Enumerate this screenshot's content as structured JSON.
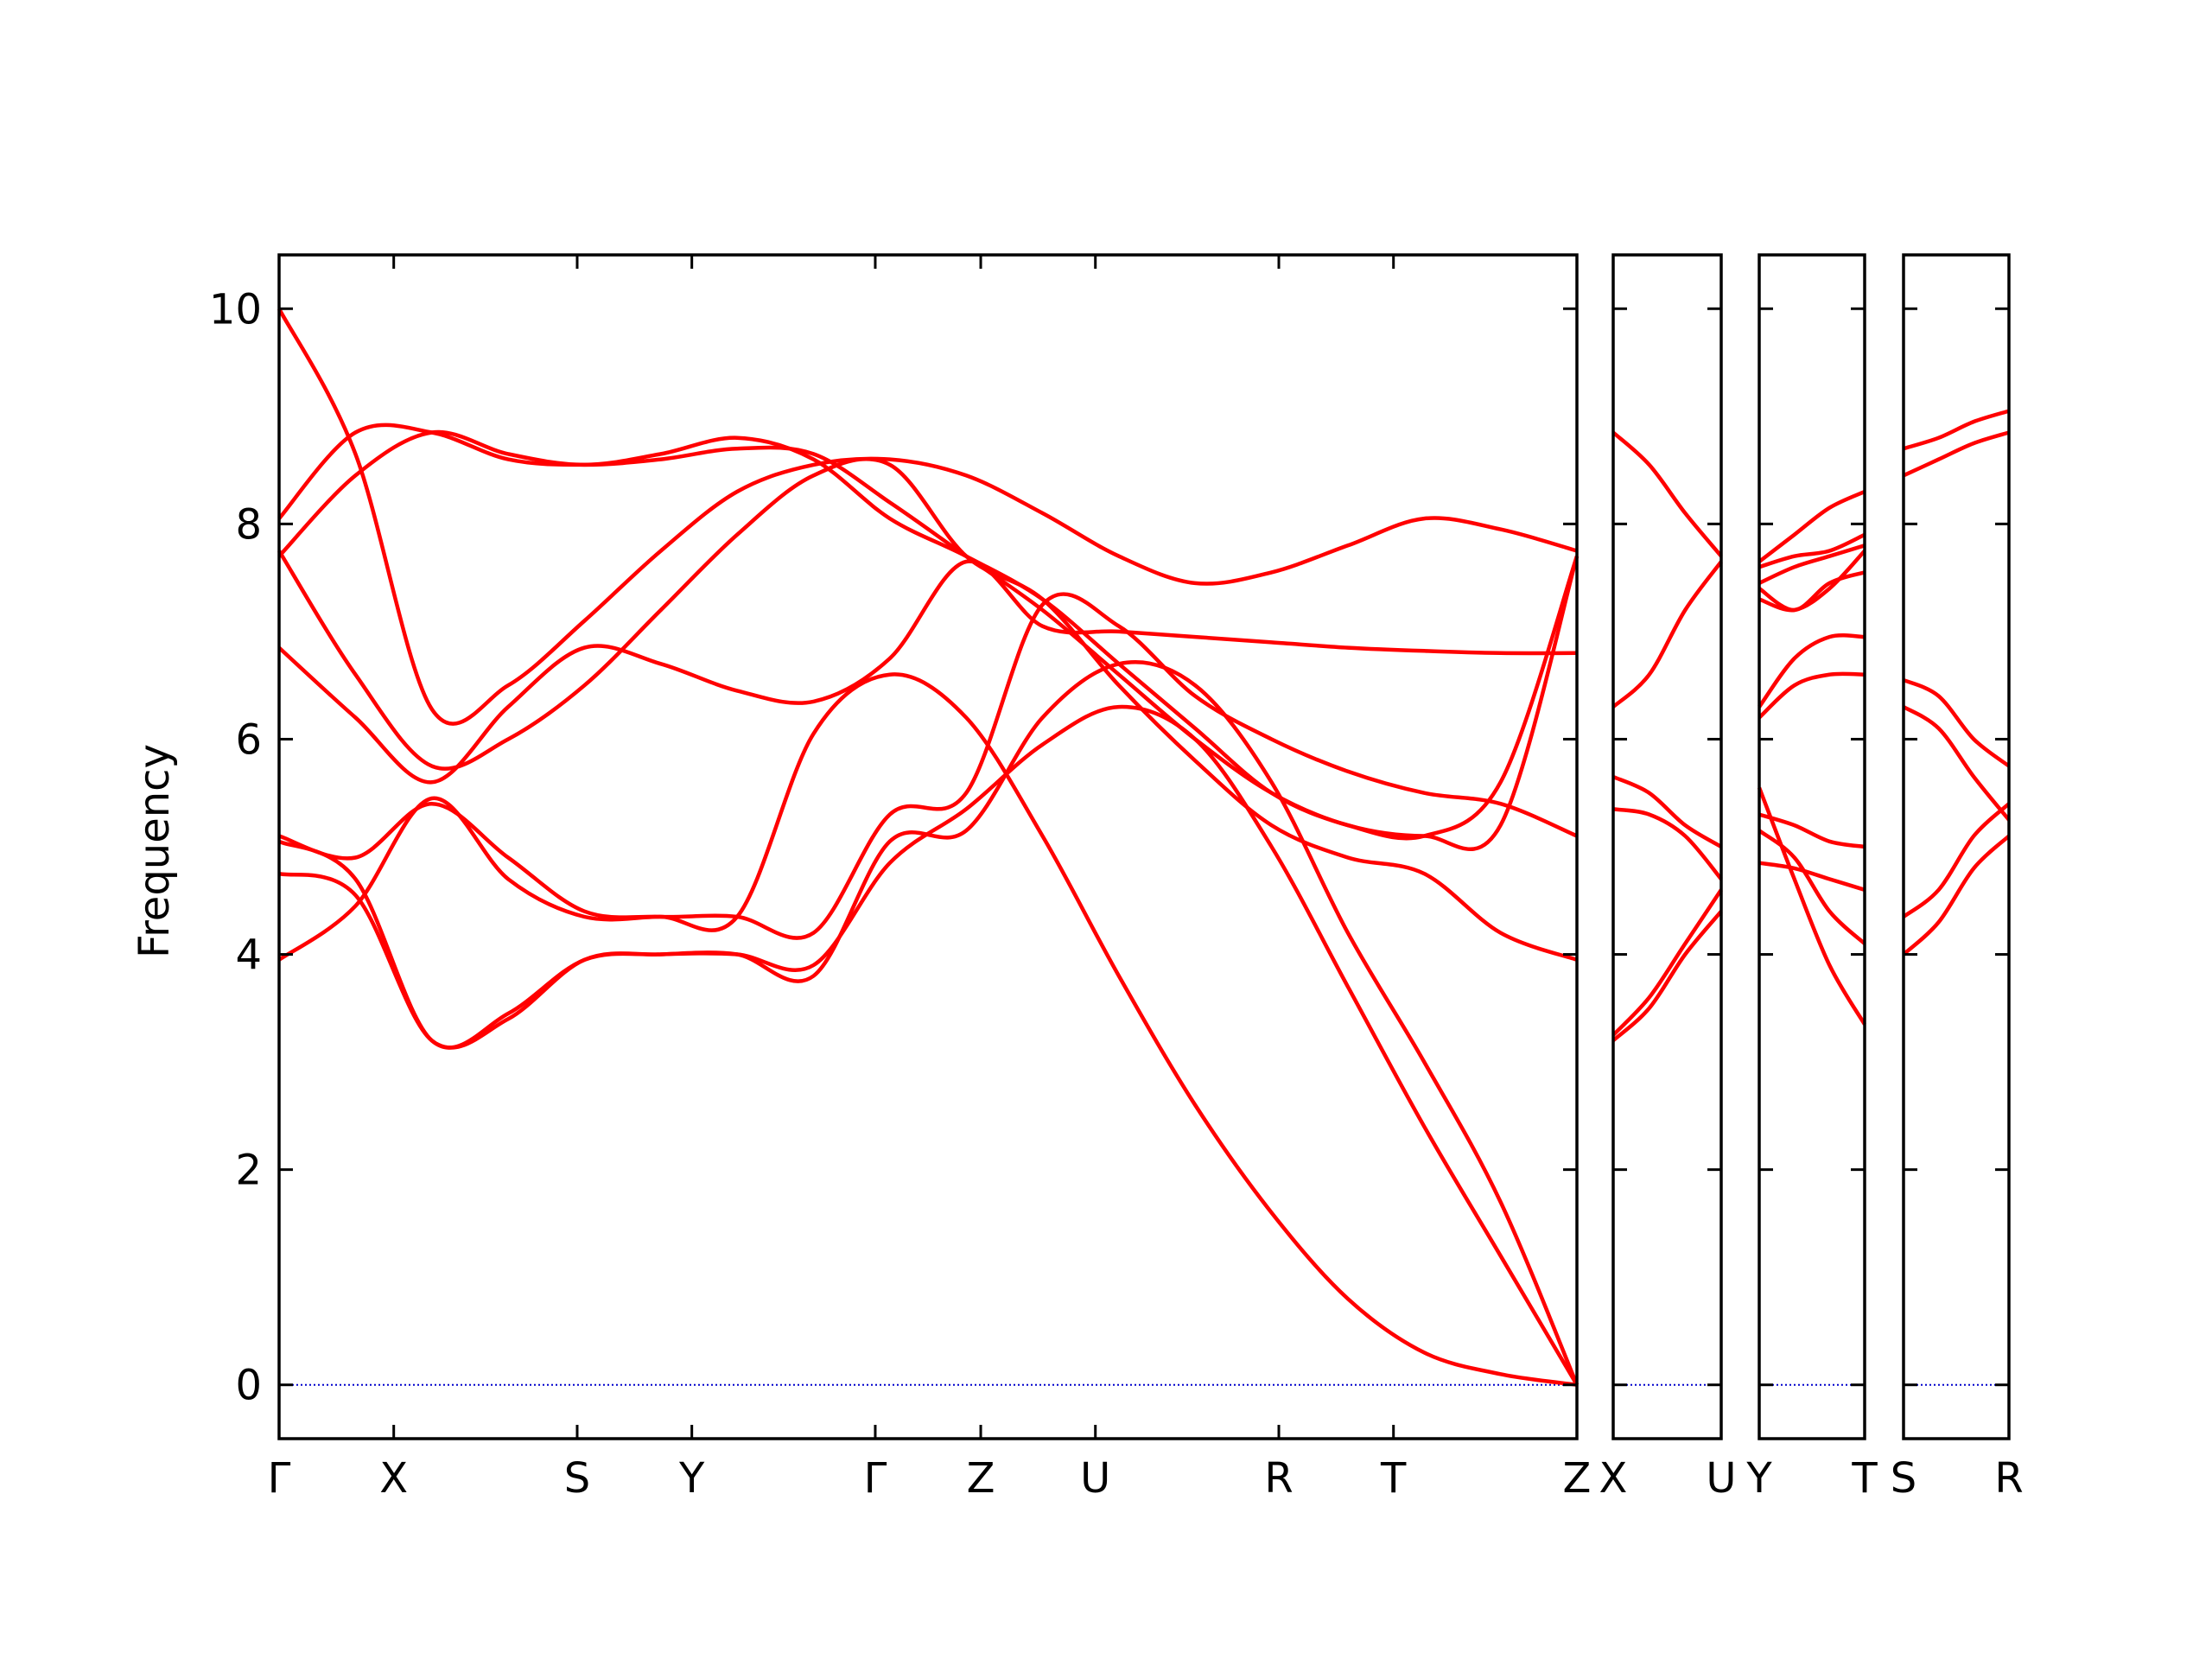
{
  "chart_data": {
    "type": "line",
    "title": "",
    "xlabel": "",
    "ylabel": "Frequency",
    "ylim": [
      -0.5,
      10.5
    ],
    "yticks": [
      0,
      2,
      4,
      6,
      8,
      10
    ],
    "line_color": "#ff0000",
    "zero_line_color": "#0000cc",
    "panels": [
      {
        "segments": [
          {
            "from": "Γ",
            "to": "X",
            "length": 1.0
          },
          {
            "from": "X",
            "to": "S",
            "length": 1.6
          },
          {
            "from": "S",
            "to": "Y",
            "length": 1.0
          },
          {
            "from": "Y",
            "to": "Γ",
            "length": 1.6
          },
          {
            "from": "Γ",
            "to": "Z",
            "length": 0.92
          },
          {
            "from": "Z",
            "to": "U",
            "length": 1.0
          },
          {
            "from": "U",
            "to": "R",
            "length": 1.6
          },
          {
            "from": "R",
            "to": "T",
            "length": 1.0
          },
          {
            "from": "T",
            "to": "Z",
            "length": 1.6
          }
        ],
        "labels": [
          "Γ",
          "X",
          "S",
          "Y",
          "Γ",
          "Z",
          "U",
          "R",
          "T",
          "Z"
        ],
        "bands": [
          {
            "seg": [
              [
                0,
                10
              ],
              [
                0.5,
                8.2
              ],
              [
                1,
                6.3
              ]
            ],
            "smooth": [
              [
                0,
                10
              ],
              [
                0.2,
                9.4
              ],
              [
                0.55,
                8.2
              ],
              [
                1,
                6.3
              ],
              [
                0,
                0
              ],
              [
                0,
                0
              ]
            ]
          }
        ]
      },
      {
        "segments": [
          {
            "from": "X",
            "to": "U",
            "length": 1.0
          }
        ],
        "labels": [
          "X",
          "U"
        ]
      },
      {
        "segments": [
          {
            "from": "Y",
            "to": "T",
            "length": 1.0
          }
        ],
        "labels": [
          "Y",
          "T"
        ]
      },
      {
        "segments": [
          {
            "from": "S",
            "to": "R",
            "length": 1.0
          }
        ],
        "labels": [
          "S",
          "R"
        ]
      }
    ],
    "panel1_bands": [
      [
        10.0,
        8.65,
        6.28,
        6.5,
        7.1,
        7.75,
        8.3,
        8.55,
        8.6,
        8.45,
        8.1,
        7.7,
        7.45,
        7.55,
        7.8,
        8.05,
        7.95,
        7.75
      ],
      [
        8.05,
        8.85,
        8.85,
        8.6,
        8.55,
        8.6,
        8.7,
        8.65,
        8.2,
        7.7,
        7.2,
        6.6,
        6.0,
        5.5,
        5.2,
        5.1,
        5.6,
        7.7
      ],
      [
        7.7,
        8.45,
        8.85,
        8.65,
        8.55,
        8.65,
        8.8,
        8.6,
        8.05,
        7.7,
        7.3,
        6.7,
        6.1,
        5.5,
        5.2,
        5.1,
        5.2,
        7.7
      ],
      [
        7.75,
        6.6,
        5.75,
        6.0,
        6.5,
        7.2,
        7.9,
        8.45,
        8.55,
        7.7,
        7.3,
        6.5,
        5.8,
        5.2,
        4.9,
        4.75,
        4.2,
        3.95
      ],
      [
        6.85,
        6.2,
        5.6,
        6.3,
        6.85,
        6.7,
        6.45,
        6.35,
        6.75,
        7.65,
        7.05,
        7.0,
        6.95,
        6.9,
        6.85,
        6.82,
        6.8,
        6.8
      ],
      [
        5.1,
        4.9,
        5.4,
        4.9,
        4.4,
        4.35,
        4.35,
        4.2,
        5.3,
        5.5,
        7.25,
        7.05,
        6.4,
        6.0,
        5.7,
        5.5,
        5.4,
        5.1
      ],
      [
        5.05,
        4.7,
        3.2,
        3.45,
        3.95,
        4.0,
        4.0,
        3.8,
        5.05,
        5.15,
        6.2,
        6.7,
        6.5,
        5.6,
        4.2,
        3.0,
        1.7,
        0.0
      ],
      [
        4.75,
        4.55,
        3.2,
        3.4,
        3.95,
        4.0,
        4.0,
        3.9,
        4.85,
        5.35,
        5.95,
        6.3,
        6.0,
        5.0,
        3.7,
        2.4,
        1.2,
        0.0
      ],
      [
        3.95,
        4.45,
        5.45,
        4.7,
        4.35,
        4.35,
        4.35,
        6.05,
        6.6,
        6.2,
        5.1,
        3.8,
        2.6,
        1.6,
        0.8,
        0.3,
        0.1,
        0.0
      ]
    ],
    "curves": []
  }
}
